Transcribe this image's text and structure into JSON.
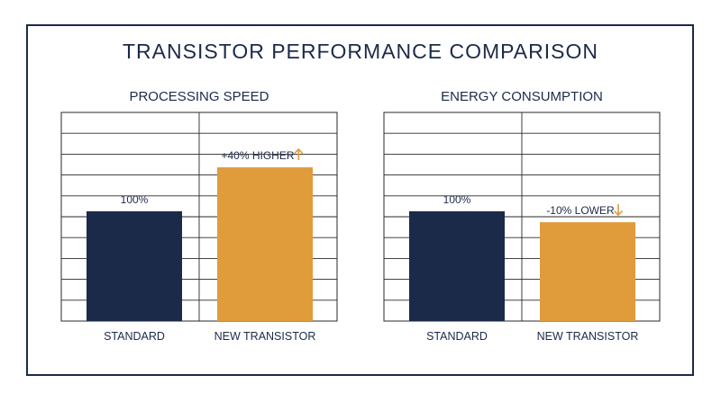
{
  "title": "TRANSISTOR PERFORMANCE COMPARISON",
  "colors": {
    "standard": "#1c2a4a",
    "new": "#e09b3a",
    "text": "#1c2a4a",
    "grid": "#2a2a2a"
  },
  "chart_data": [
    {
      "type": "bar",
      "title": "PROCESSING SPEED",
      "categories": [
        "STANDARD",
        "NEW TRANSISTOR"
      ],
      "values": [
        100,
        140
      ],
      "data_labels": [
        "100%",
        "+40% HIGHER"
      ],
      "label_icons": [
        "",
        "arrow-up-icon"
      ],
      "ylim": [
        0,
        190
      ],
      "grid": true,
      "xlabel": "",
      "ylabel": ""
    },
    {
      "type": "bar",
      "title": "ENERGY CONSUMPTION",
      "categories": [
        "STANDARD",
        "NEW TRANSISTOR"
      ],
      "values": [
        100,
        90
      ],
      "data_labels": [
        "100%",
        "-10% LOWER"
      ],
      "label_icons": [
        "",
        "arrow-down-icon"
      ],
      "ylim": [
        0,
        190
      ],
      "grid": true,
      "xlabel": "",
      "ylabel": ""
    }
  ]
}
